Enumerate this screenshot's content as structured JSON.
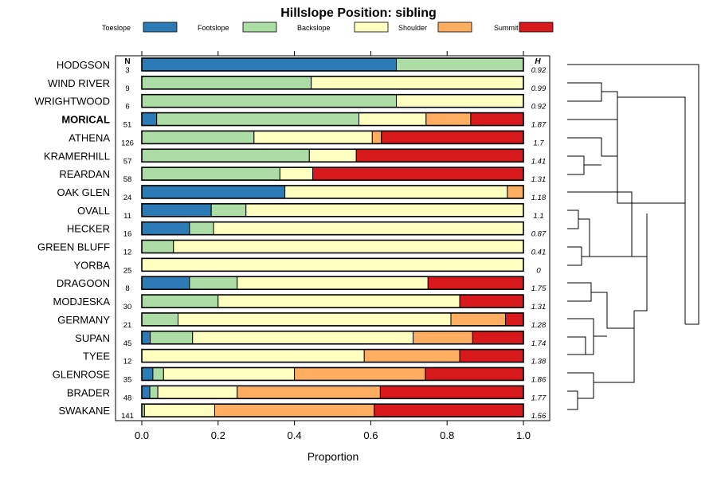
{
  "chart_data": {
    "type": "bar",
    "orientation": "horizontal",
    "stacked": true,
    "title": "Hillslope Position: sibling",
    "xlabel": "Proportion",
    "ylabel": "",
    "xlim": [
      0,
      1
    ],
    "xticks": [
      "0.0",
      "0.2",
      "0.4",
      "0.6",
      "0.8",
      "1.0"
    ],
    "n_header": "N",
    "h_header": "H",
    "legend_position": "top",
    "highlighted": "MORICAL",
    "series": [
      {
        "name": "Toeslope",
        "color": "#2c7bb6"
      },
      {
        "name": "Footslope",
        "color": "#abdda4"
      },
      {
        "name": "Backslope",
        "color": "#ffffbf"
      },
      {
        "name": "Shoulder",
        "color": "#fdae61"
      },
      {
        "name": "Summit",
        "color": "#d7191c"
      }
    ],
    "rows": [
      {
        "name": "HODGSON",
        "n": "3",
        "h": "0.92",
        "values": [
          0.667,
          0.333,
          0,
          0,
          0
        ]
      },
      {
        "name": "WIND RIVER",
        "n": "9",
        "h": "0.99",
        "values": [
          0,
          0.444,
          0.556,
          0,
          0
        ]
      },
      {
        "name": "WRIGHTWOOD",
        "n": "6",
        "h": "0.92",
        "values": [
          0,
          0.667,
          0.333,
          0,
          0
        ]
      },
      {
        "name": "MORICAL",
        "n": "51",
        "h": "1.87",
        "values": [
          0.039,
          0.53,
          0.176,
          0.117,
          0.138
        ]
      },
      {
        "name": "ATHENA",
        "n": "126",
        "h": "1.7",
        "values": [
          0,
          0.294,
          0.31,
          0.024,
          0.372
        ]
      },
      {
        "name": "KRAMERHILL",
        "n": "57",
        "h": "1.41",
        "values": [
          0,
          0.439,
          0.123,
          0,
          0.438
        ]
      },
      {
        "name": "REARDAN",
        "n": "58",
        "h": "1.31",
        "values": [
          0,
          0.362,
          0.086,
          0,
          0.552
        ]
      },
      {
        "name": "OAK GLEN",
        "n": "24",
        "h": "1.18",
        "values": [
          0.375,
          0,
          0.583,
          0.042,
          0
        ]
      },
      {
        "name": "OVALL",
        "n": "11",
        "h": "1.1",
        "values": [
          0.182,
          0.091,
          0.727,
          0,
          0
        ]
      },
      {
        "name": "HECKER",
        "n": "16",
        "h": "0.87",
        "values": [
          0.125,
          0.063,
          0.812,
          0,
          0
        ]
      },
      {
        "name": "GREEN BLUFF",
        "n": "12",
        "h": "0.41",
        "values": [
          0,
          0.083,
          0.917,
          0,
          0
        ]
      },
      {
        "name": "YORBA",
        "n": "25",
        "h": "0",
        "values": [
          0,
          0,
          1,
          0,
          0
        ]
      },
      {
        "name": "DRAGOON",
        "n": "8",
        "h": "1.75",
        "values": [
          0.125,
          0.125,
          0.5,
          0,
          0.25
        ]
      },
      {
        "name": "MODJESKA",
        "n": "30",
        "h": "1.31",
        "values": [
          0,
          0.2,
          0.633,
          0,
          0.167
        ]
      },
      {
        "name": "GERMANY",
        "n": "21",
        "h": "1.28",
        "values": [
          0,
          0.095,
          0.715,
          0.143,
          0.047
        ]
      },
      {
        "name": "SUPAN",
        "n": "45",
        "h": "1.74",
        "values": [
          0.022,
          0.111,
          0.578,
          0.156,
          0.133
        ]
      },
      {
        "name": "TYEE",
        "n": "12",
        "h": "1.38",
        "values": [
          0,
          0,
          0.583,
          0.25,
          0.167
        ]
      },
      {
        "name": "GLENROSE",
        "n": "35",
        "h": "1.86",
        "values": [
          0.029,
          0.028,
          0.343,
          0.343,
          0.257
        ]
      },
      {
        "name": "BRADER",
        "n": "48",
        "h": "1.77",
        "values": [
          0.021,
          0.021,
          0.208,
          0.375,
          0.375
        ]
      },
      {
        "name": "SWAKANE",
        "n": "141",
        "h": "1.56",
        "values": [
          0,
          0.007,
          0.184,
          0.418,
          0.391
        ]
      }
    ]
  }
}
